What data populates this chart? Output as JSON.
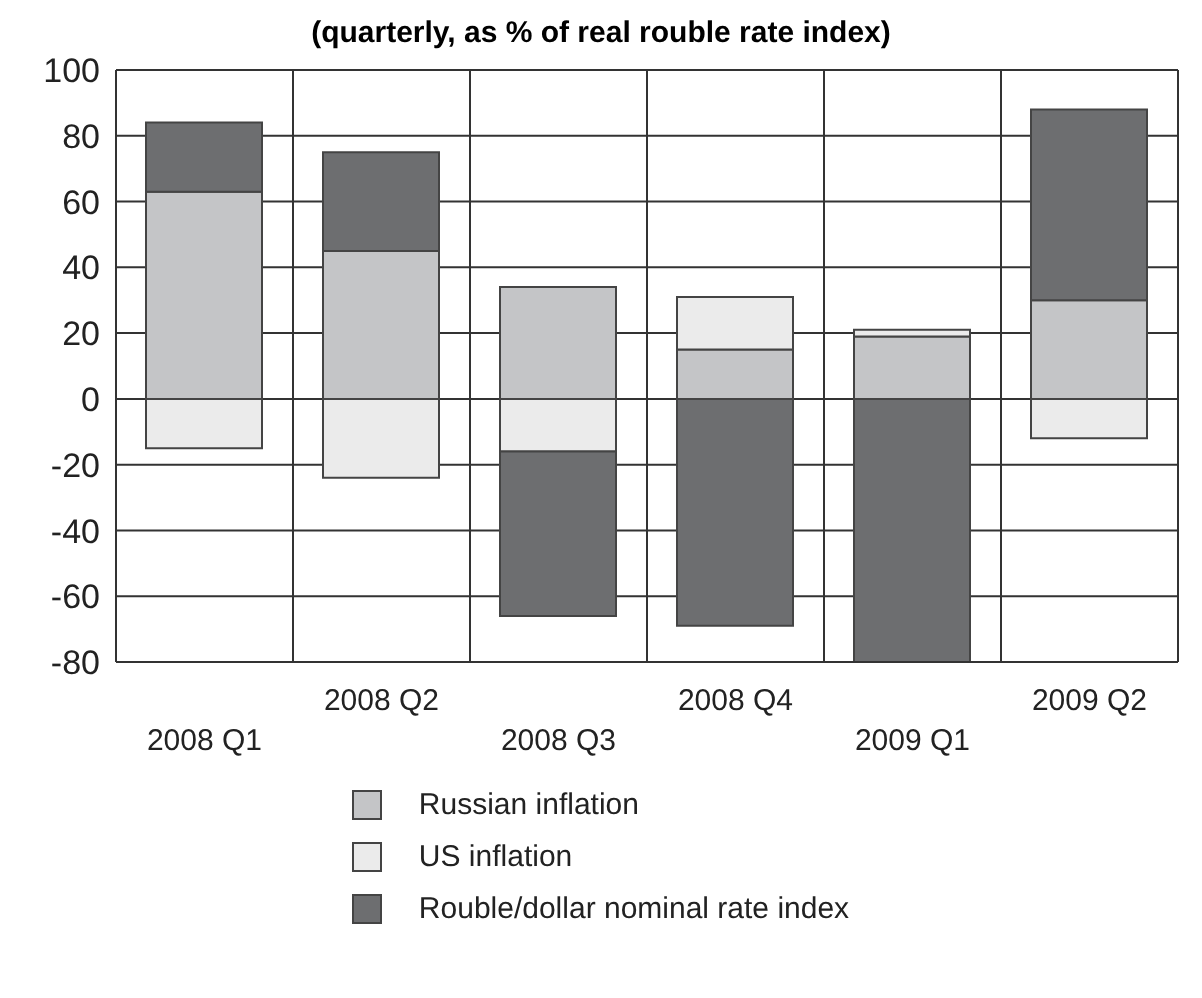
{
  "chart_data": {
    "type": "bar",
    "title": "(quarterly, as % of real rouble rate index)",
    "categories": [
      "2008 Q1",
      "2008 Q2",
      "2008 Q3",
      "2008 Q4",
      "2009 Q1",
      "2009 Q2"
    ],
    "stacked": true,
    "series": [
      {
        "name": "Russian inflation",
        "color": "#c4c5c7",
        "values": [
          63,
          45,
          34,
          15,
          19,
          30
        ]
      },
      {
        "name": "US inflation",
        "color": "#ebebeb",
        "values": [
          -15,
          -24,
          -16,
          16,
          2,
          -12
        ]
      },
      {
        "name": "Rouble/dollar nominal rate index",
        "color": "#6d6e70",
        "values": [
          21,
          30,
          -50,
          -69,
          -80,
          58
        ]
      }
    ],
    "ylim": [
      -80,
      100
    ],
    "yticks": [
      -80,
      -60,
      -40,
      -20,
      0,
      20,
      40,
      60,
      80,
      100
    ],
    "grid": true,
    "legend": "bottom"
  }
}
